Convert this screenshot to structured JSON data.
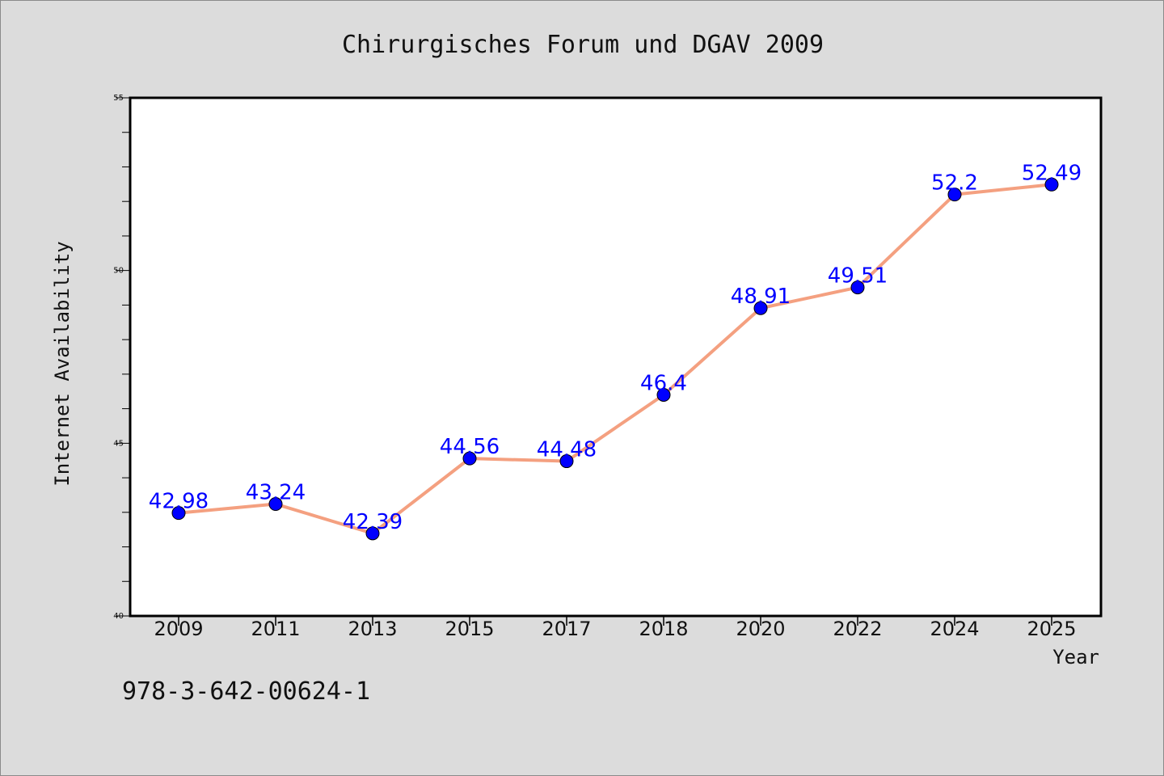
{
  "chart_data": {
    "type": "line",
    "title": "Chirurgisches Forum und DGAV 2009",
    "xlabel": "Year",
    "ylabel": "Internet Availability",
    "categories": [
      "2009",
      "2011",
      "2013",
      "2015",
      "2017",
      "2018",
      "2020",
      "2022",
      "2024",
      "2025"
    ],
    "series": [
      {
        "values": [
          42.98,
          43.24,
          42.39,
          44.56,
          44.48,
          46.4,
          48.91,
          49.51,
          52.2,
          52.49
        ]
      }
    ],
    "data_labels": [
      "42.98",
      "43.24",
      "42.39",
      "44.56",
      "44.48",
      "46.4",
      "48.91",
      "49.51",
      "52.2",
      "52.49"
    ],
    "ylim": [
      40,
      55
    ],
    "yticks": [
      40,
      45,
      50,
      55
    ],
    "grid": false,
    "legend": "none",
    "line_color": "#f4a080",
    "marker_color": "#0000ff",
    "label_color": "#0000ff",
    "background_color": "#dcdcdc",
    "plot_background": "#ffffff"
  },
  "footer": {
    "text": "978-3-642-00624-1"
  }
}
